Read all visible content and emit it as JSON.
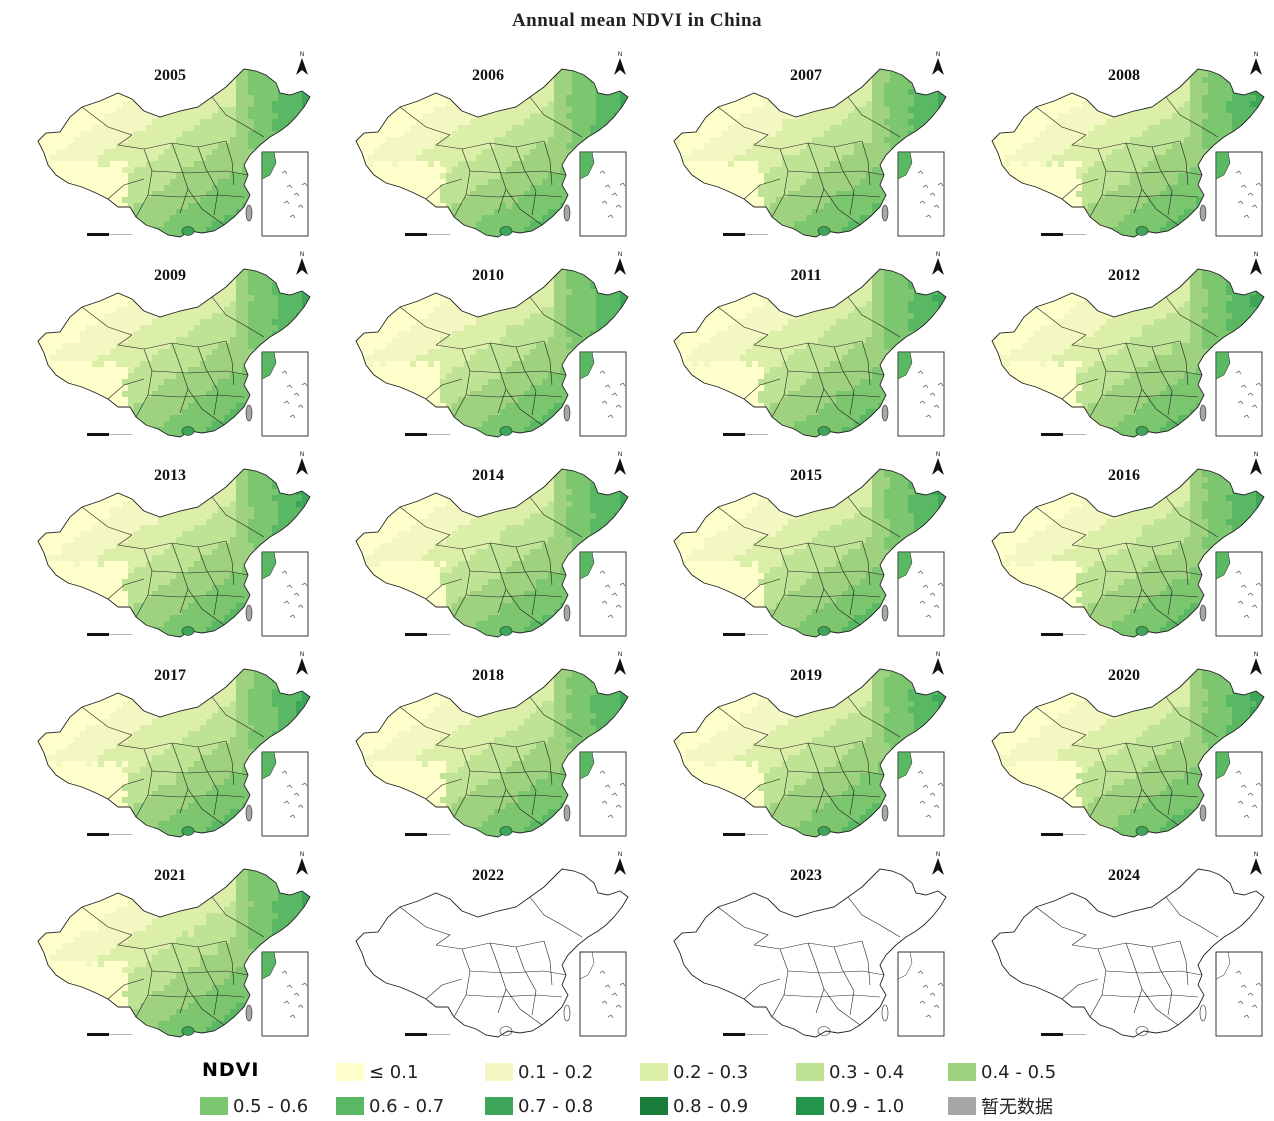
{
  "title": "Annual mean NDVI in China",
  "panels": [
    {
      "year": "2005",
      "has_data": true
    },
    {
      "year": "2006",
      "has_data": true
    },
    {
      "year": "2007",
      "has_data": true
    },
    {
      "year": "2008",
      "has_data": true
    },
    {
      "year": "2009",
      "has_data": true
    },
    {
      "year": "2010",
      "has_data": true
    },
    {
      "year": "2011",
      "has_data": true
    },
    {
      "year": "2012",
      "has_data": true
    },
    {
      "year": "2013",
      "has_data": true
    },
    {
      "year": "2014",
      "has_data": true
    },
    {
      "year": "2015",
      "has_data": true
    },
    {
      "year": "2016",
      "has_data": true
    },
    {
      "year": "2017",
      "has_data": true
    },
    {
      "year": "2018",
      "has_data": true
    },
    {
      "year": "2019",
      "has_data": true
    },
    {
      "year": "2020",
      "has_data": true
    },
    {
      "year": "2021",
      "has_data": true
    },
    {
      "year": "2022",
      "has_data": false
    },
    {
      "year": "2023",
      "has_data": false
    },
    {
      "year": "2024",
      "has_data": false
    }
  ],
  "north_label": "N",
  "legend": {
    "title": "NDVI",
    "items": [
      {
        "label": "≤ 0.1",
        "color": "#ffffcc"
      },
      {
        "label": "0.1 - 0.2",
        "color": "#f3f7c2"
      },
      {
        "label": "0.2 - 0.3",
        "color": "#dcefa8"
      },
      {
        "label": "0.3 - 0.4",
        "color": "#bfe394"
      },
      {
        "label": "0.4 - 0.5",
        "color": "#9ed27f"
      },
      {
        "label": "0.5 - 0.6",
        "color": "#7cc670"
      },
      {
        "label": "0.6 - 0.7",
        "color": "#5ab764"
      },
      {
        "label": "0.7 - 0.8",
        "color": "#3ea65a"
      },
      {
        "label": "0.8 - 0.9",
        "color": "#1b7d3b"
      },
      {
        "label": "0.9 - 1.0",
        "color": "#23954a"
      },
      {
        "label": "暂无数据",
        "color": "#a6a6a6"
      }
    ]
  }
}
